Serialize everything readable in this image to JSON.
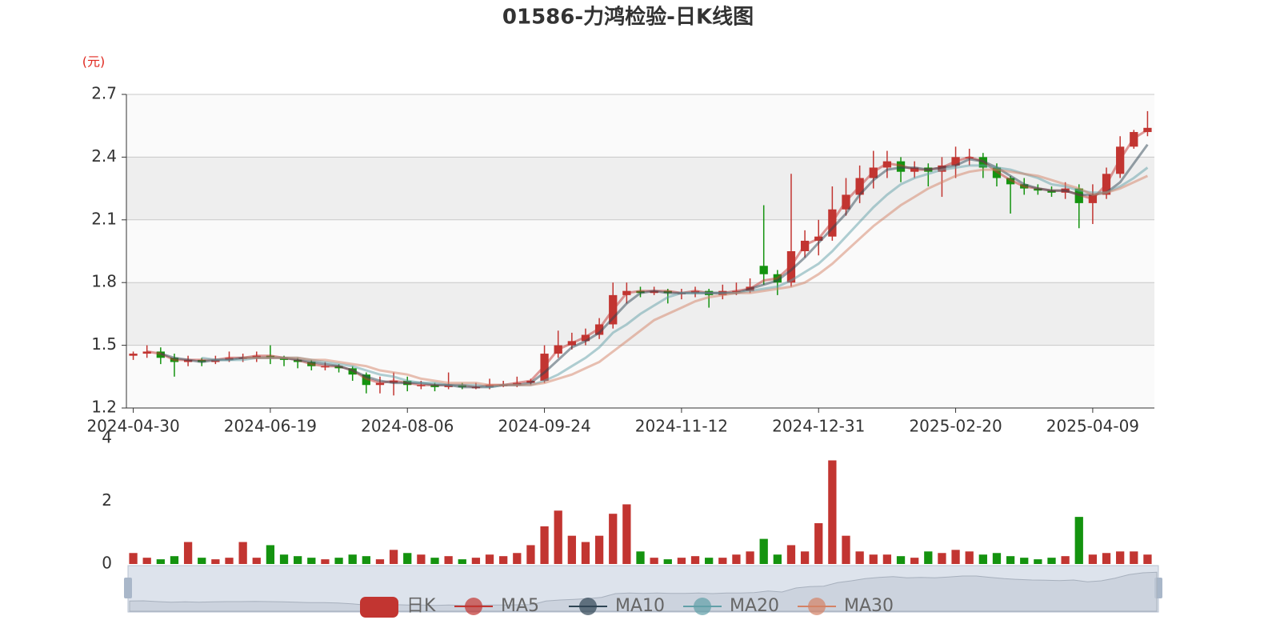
{
  "chart_data": {
    "type": "candlestick",
    "title": "01586-力鸿检验-日K线图",
    "unit": "(元)",
    "categories": [
      "2024-04-30",
      null,
      null,
      null,
      null,
      null,
      null,
      null,
      null,
      null,
      "2024-06-19",
      null,
      null,
      null,
      null,
      null,
      null,
      null,
      null,
      null,
      "2024-08-06",
      null,
      null,
      null,
      null,
      null,
      null,
      null,
      null,
      null,
      "2024-09-24",
      null,
      null,
      null,
      null,
      null,
      null,
      null,
      null,
      null,
      "2024-11-12",
      null,
      null,
      null,
      null,
      null,
      null,
      null,
      null,
      null,
      "2024-12-31",
      null,
      null,
      null,
      null,
      null,
      null,
      null,
      null,
      null,
      "2025-02-20",
      null,
      null,
      null,
      null,
      null,
      null,
      null,
      null,
      null,
      "2025-04-09",
      null,
      null,
      null,
      null
    ],
    "ylim": [
      1.2,
      2.7
    ],
    "yticks": [
      1.2,
      1.5,
      1.8,
      2.1,
      2.4,
      2.7
    ],
    "grid": true,
    "split_area": true,
    "series": [
      {
        "name": "日K",
        "color": "#c23531",
        "down_color": "#14930f",
        "open": [
          1.45,
          1.46,
          1.47,
          1.44,
          1.42,
          1.43,
          1.42,
          1.43,
          1.44,
          1.44,
          1.45,
          1.44,
          1.43,
          1.42,
          1.4,
          1.4,
          1.39,
          1.36,
          1.31,
          1.32,
          1.33,
          1.31,
          1.31,
          1.3,
          1.31,
          1.3,
          1.3,
          1.31,
          1.31,
          1.32,
          1.33,
          1.46,
          1.5,
          1.52,
          1.55,
          1.6,
          1.74,
          1.76,
          1.75,
          1.76,
          1.75,
          1.75,
          1.76,
          1.74,
          1.76,
          1.76,
          1.88,
          1.84,
          1.8,
          1.95,
          2.0,
          2.02,
          2.15,
          2.22,
          2.3,
          2.35,
          2.38,
          2.33,
          2.35,
          2.33,
          2.36,
          2.4,
          2.4,
          2.35,
          2.3,
          2.27,
          2.25,
          2.24,
          2.23,
          2.25,
          2.18,
          2.22,
          2.32,
          2.45,
          2.52
        ],
        "close": [
          1.46,
          1.47,
          1.44,
          1.42,
          1.43,
          1.42,
          1.43,
          1.44,
          1.44,
          1.45,
          1.44,
          1.43,
          1.42,
          1.4,
          1.4,
          1.39,
          1.36,
          1.31,
          1.32,
          1.33,
          1.31,
          1.31,
          1.3,
          1.31,
          1.3,
          1.3,
          1.31,
          1.31,
          1.32,
          1.33,
          1.46,
          1.5,
          1.52,
          1.55,
          1.6,
          1.74,
          1.76,
          1.75,
          1.76,
          1.75,
          1.75,
          1.76,
          1.74,
          1.76,
          1.76,
          1.78,
          1.84,
          1.8,
          1.95,
          2.0,
          2.02,
          2.15,
          2.22,
          2.3,
          2.35,
          2.38,
          2.33,
          2.35,
          2.33,
          2.36,
          2.4,
          2.4,
          2.35,
          2.3,
          2.27,
          2.25,
          2.24,
          2.23,
          2.25,
          2.18,
          2.22,
          2.32,
          2.45,
          2.52,
          2.54
        ],
        "low": [
          1.43,
          1.44,
          1.41,
          1.35,
          1.4,
          1.4,
          1.41,
          1.42,
          1.42,
          1.42,
          1.41,
          1.4,
          1.39,
          1.38,
          1.38,
          1.37,
          1.33,
          1.27,
          1.27,
          1.26,
          1.28,
          1.29,
          1.28,
          1.29,
          1.29,
          1.29,
          1.29,
          1.3,
          1.3,
          1.31,
          1.32,
          1.44,
          1.48,
          1.5,
          1.53,
          1.58,
          1.7,
          1.73,
          1.74,
          1.7,
          1.72,
          1.73,
          1.68,
          1.72,
          1.74,
          1.75,
          1.79,
          1.74,
          1.78,
          1.92,
          1.93,
          2.0,
          2.12,
          2.18,
          2.25,
          2.3,
          2.28,
          2.3,
          2.26,
          2.21,
          2.3,
          2.36,
          2.3,
          2.26,
          2.13,
          2.22,
          2.22,
          2.21,
          2.2,
          2.06,
          2.08,
          2.2,
          2.3,
          2.44,
          2.5
        ],
        "high": [
          1.47,
          1.5,
          1.49,
          1.46,
          1.45,
          1.44,
          1.45,
          1.47,
          1.46,
          1.47,
          1.5,
          1.45,
          1.44,
          1.43,
          1.42,
          1.41,
          1.4,
          1.37,
          1.35,
          1.37,
          1.35,
          1.33,
          1.32,
          1.37,
          1.32,
          1.32,
          1.34,
          1.33,
          1.35,
          1.34,
          1.5,
          1.57,
          1.56,
          1.58,
          1.63,
          1.8,
          1.8,
          1.78,
          1.78,
          1.77,
          1.77,
          1.78,
          1.77,
          1.79,
          1.8,
          1.82,
          2.17,
          1.86,
          2.32,
          2.05,
          2.1,
          2.26,
          2.3,
          2.36,
          2.43,
          2.43,
          2.4,
          2.38,
          2.37,
          2.4,
          2.45,
          2.44,
          2.42,
          2.37,
          2.31,
          2.3,
          2.27,
          2.26,
          2.28,
          2.27,
          2.27,
          2.35,
          2.5,
          2.53,
          2.62
        ]
      },
      {
        "name": "MA5",
        "color": "#c23531",
        "values": [
          null,
          1.47,
          1.46,
          1.43,
          1.43,
          1.43,
          1.43,
          1.44,
          1.44,
          1.45,
          1.45,
          1.44,
          1.43,
          1.41,
          1.4,
          1.4,
          1.38,
          1.34,
          1.32,
          1.33,
          1.32,
          1.31,
          1.31,
          1.31,
          1.31,
          1.3,
          1.31,
          1.31,
          1.32,
          1.33,
          1.4,
          1.48,
          1.51,
          1.54,
          1.58,
          1.67,
          1.75,
          1.76,
          1.76,
          1.76,
          1.75,
          1.76,
          1.75,
          1.75,
          1.76,
          1.77,
          1.81,
          1.82,
          1.88,
          1.98,
          2.01,
          2.09,
          2.19,
          2.26,
          2.33,
          2.37,
          2.36,
          2.34,
          2.34,
          2.35,
          2.38,
          2.4,
          2.38,
          2.33,
          2.29,
          2.26,
          2.25,
          2.24,
          2.24,
          2.22,
          2.2,
          2.27,
          2.39,
          2.49,
          2.53
        ]
      },
      {
        "name": "MA10",
        "color": "#2f4554",
        "values": [
          null,
          null,
          1.46,
          1.44,
          1.43,
          1.42,
          1.43,
          1.43,
          1.44,
          1.44,
          1.44,
          1.44,
          1.43,
          1.42,
          1.41,
          1.4,
          1.38,
          1.35,
          1.33,
          1.32,
          1.32,
          1.32,
          1.31,
          1.31,
          1.3,
          1.3,
          1.3,
          1.31,
          1.31,
          1.32,
          1.37,
          1.43,
          1.49,
          1.52,
          1.56,
          1.63,
          1.7,
          1.75,
          1.76,
          1.75,
          1.75,
          1.75,
          1.75,
          1.75,
          1.75,
          1.77,
          1.79,
          1.81,
          1.86,
          1.92,
          1.99,
          2.06,
          2.13,
          2.22,
          2.29,
          2.34,
          2.35,
          2.35,
          2.34,
          2.35,
          2.36,
          2.39,
          2.38,
          2.35,
          2.31,
          2.27,
          2.25,
          2.24,
          2.24,
          2.22,
          2.22,
          2.23,
          2.28,
          2.37,
          2.46
        ]
      },
      {
        "name": "MA20",
        "color": "#61a0a8",
        "values": [
          null,
          null,
          null,
          null,
          null,
          1.44,
          1.43,
          1.43,
          1.43,
          1.44,
          1.44,
          1.44,
          1.44,
          1.43,
          1.42,
          1.41,
          1.4,
          1.38,
          1.36,
          1.35,
          1.33,
          1.32,
          1.32,
          1.31,
          1.31,
          1.31,
          1.3,
          1.31,
          1.31,
          1.31,
          1.33,
          1.36,
          1.4,
          1.44,
          1.49,
          1.56,
          1.6,
          1.65,
          1.69,
          1.73,
          1.75,
          1.75,
          1.75,
          1.75,
          1.75,
          1.76,
          1.77,
          1.78,
          1.81,
          1.85,
          1.89,
          1.95,
          2.02,
          2.09,
          2.16,
          2.22,
          2.27,
          2.3,
          2.32,
          2.34,
          2.35,
          2.36,
          2.36,
          2.35,
          2.34,
          2.32,
          2.3,
          2.27,
          2.26,
          2.24,
          2.23,
          2.23,
          2.26,
          2.3,
          2.35
        ]
      },
      {
        "name": "MA30",
        "color": "#d48265",
        "values": [
          null,
          null,
          null,
          null,
          null,
          null,
          null,
          null,
          1.44,
          1.44,
          1.44,
          1.44,
          1.44,
          1.43,
          1.43,
          1.42,
          1.41,
          1.4,
          1.38,
          1.37,
          1.36,
          1.34,
          1.33,
          1.32,
          1.32,
          1.32,
          1.31,
          1.31,
          1.31,
          1.31,
          1.32,
          1.34,
          1.36,
          1.39,
          1.42,
          1.47,
          1.52,
          1.57,
          1.62,
          1.65,
          1.68,
          1.71,
          1.73,
          1.74,
          1.75,
          1.75,
          1.76,
          1.77,
          1.78,
          1.8,
          1.84,
          1.89,
          1.95,
          2.01,
          2.07,
          2.12,
          2.17,
          2.21,
          2.25,
          2.28,
          2.31,
          2.33,
          2.34,
          2.34,
          2.33,
          2.32,
          2.31,
          2.29,
          2.27,
          2.25,
          2.22,
          2.23,
          2.25,
          2.28,
          2.31
        ]
      }
    ],
    "volume": {
      "ylim": [
        0,
        4
      ],
      "yticks": [
        0,
        2,
        4
      ],
      "values": [
        0.35,
        0.2,
        0.15,
        0.25,
        0.7,
        0.2,
        0.15,
        0.2,
        0.7,
        0.2,
        0.6,
        0.3,
        0.25,
        0.2,
        0.15,
        0.2,
        0.3,
        0.25,
        0.15,
        0.45,
        0.35,
        0.3,
        0.2,
        0.25,
        0.15,
        0.2,
        0.3,
        0.25,
        0.35,
        0.6,
        1.2,
        1.7,
        0.9,
        0.7,
        0.9,
        1.6,
        1.9,
        0.4,
        0.2,
        0.15,
        0.2,
        0.25,
        0.2,
        0.2,
        0.3,
        0.4,
        0.8,
        0.3,
        0.6,
        0.4,
        1.3,
        3.3,
        0.9,
        0.4,
        0.3,
        0.3,
        0.25,
        0.2,
        0.4,
        0.35,
        0.45,
        0.4,
        0.3,
        0.35,
        0.25,
        0.2,
        0.15,
        0.2,
        0.25,
        1.5,
        0.3,
        0.35,
        0.4,
        0.4,
        0.3
      ]
    }
  }
}
